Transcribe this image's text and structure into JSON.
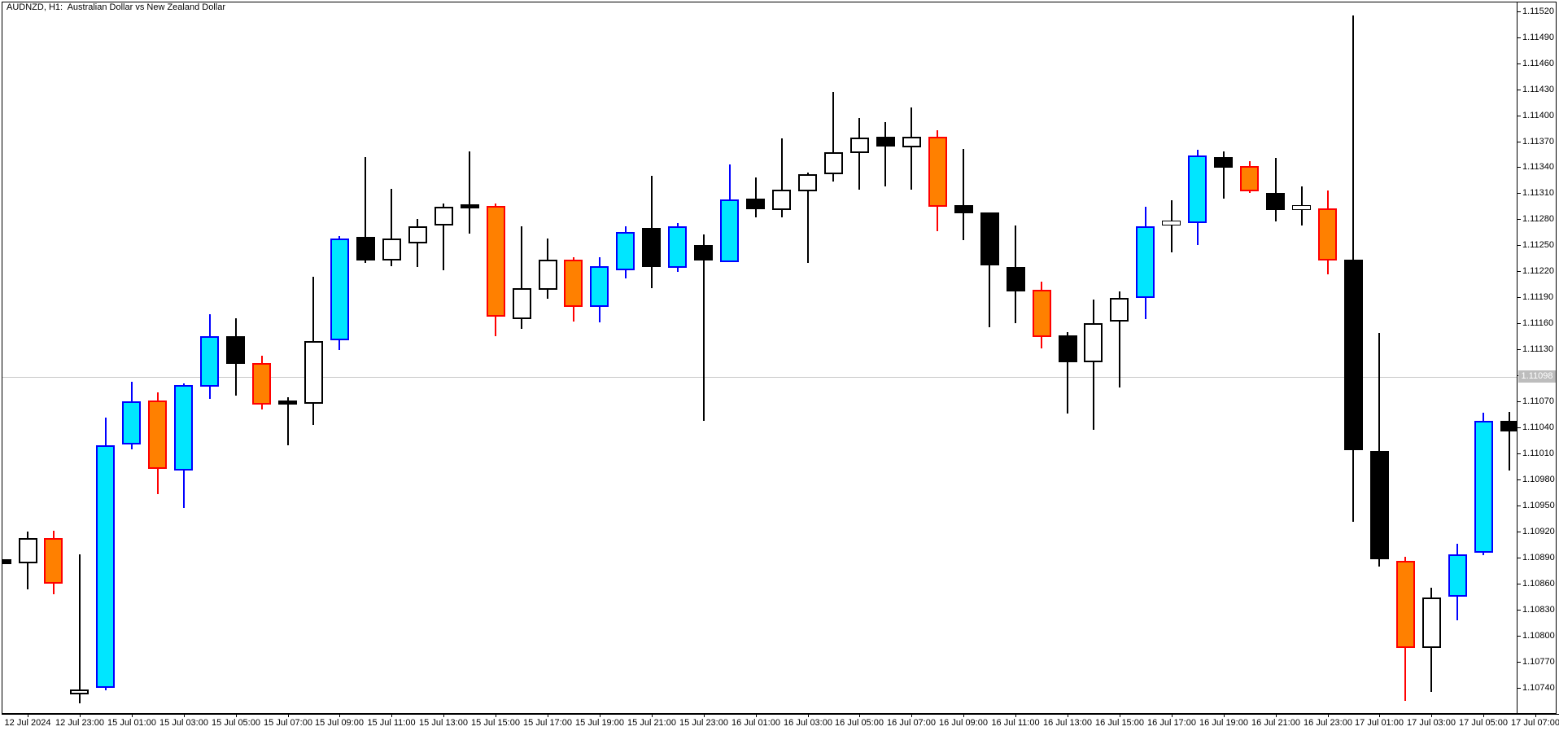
{
  "window": {
    "title": "AUDNZD, H1:  Australian Dollar vs New Zealand Dollar"
  },
  "colors": {
    "background": "#FFFFFF",
    "frame": "#000000",
    "bid_line": "#C8C8C8",
    "bid_label_bg": "#BDBDBD",
    "bid_label_text": "#FFFFFF",
    "candle_colors": {
      "cyan": {
        "fill": "#00E6FF",
        "border": "#0000FF",
        "wick": "#0000FF"
      },
      "orange": {
        "fill": "#FF8000",
        "border": "#FF0000",
        "wick": "#FF0000"
      },
      "black": {
        "fill": "#000000",
        "border": "#000000",
        "wick": "#000000"
      },
      "white": {
        "fill": "#FFFFFF",
        "border": "#000000",
        "wick": "#000000"
      }
    }
  },
  "chart_data": {
    "type": "candlestick",
    "symbol": "AUDNZD",
    "timeframe": "H1",
    "title": "AUDNZD, H1:  Australian Dollar vs New Zealand Dollar",
    "bid_price_label": "1.11098",
    "bid_price": 1.11098,
    "price_axis": {
      "min": 1.1074,
      "max": 1.1152,
      "step": 0.0003,
      "labels": [
        "1.11520",
        "1.11490",
        "1.11460",
        "1.11430",
        "1.11400",
        "1.11370",
        "1.11340",
        "1.11310",
        "1.11280",
        "1.11250",
        "1.11220",
        "1.11190",
        "1.11160",
        "1.11130",
        "1.11100",
        "1.11070",
        "1.11040",
        "1.11010",
        "1.10980",
        "1.10950",
        "1.10920",
        "1.10890",
        "1.10860",
        "1.10830",
        "1.10800",
        "1.10770",
        "1.10740"
      ]
    },
    "time_axis": {
      "labels": [
        {
          "idx": 0,
          "text": "12 Jul 2024"
        },
        {
          "idx": 2,
          "text": "12 Jul 23:00"
        },
        {
          "idx": 4,
          "text": "15 Jul 01:00"
        },
        {
          "idx": 6,
          "text": "15 Jul 03:00"
        },
        {
          "idx": 8,
          "text": "15 Jul 05:00"
        },
        {
          "idx": 10,
          "text": "15 Jul 07:00"
        },
        {
          "idx": 12,
          "text": "15 Jul 09:00"
        },
        {
          "idx": 14,
          "text": "15 Jul 11:00"
        },
        {
          "idx": 16,
          "text": "15 Jul 13:00"
        },
        {
          "idx": 18,
          "text": "15 Jul 15:00"
        },
        {
          "idx": 20,
          "text": "15 Jul 17:00"
        },
        {
          "idx": 22,
          "text": "15 Jul 19:00"
        },
        {
          "idx": 24,
          "text": "15 Jul 21:00"
        },
        {
          "idx": 26,
          "text": "15 Jul 23:00"
        },
        {
          "idx": 28,
          "text": "16 Jul 01:00"
        },
        {
          "idx": 30,
          "text": "16 Jul 03:00"
        },
        {
          "idx": 32,
          "text": "16 Jul 05:00"
        },
        {
          "idx": 34,
          "text": "16 Jul 07:00"
        },
        {
          "idx": 36,
          "text": "16 Jul 09:00"
        },
        {
          "idx": 38,
          "text": "16 Jul 11:00"
        },
        {
          "idx": 40,
          "text": "16 Jul 13:00"
        },
        {
          "idx": 42,
          "text": "16 Jul 15:00"
        },
        {
          "idx": 44,
          "text": "16 Jul 17:00"
        },
        {
          "idx": 46,
          "text": "16 Jul 19:00"
        },
        {
          "idx": 48,
          "text": "16 Jul 21:00"
        },
        {
          "idx": 50,
          "text": "16 Jul 23:00"
        },
        {
          "idx": 52,
          "text": "17 Jul 01:00"
        },
        {
          "idx": 54,
          "text": "17 Jul 03:00"
        },
        {
          "idx": 56,
          "text": "17 Jul 05:00"
        },
        {
          "idx": 58,
          "text": "17 Jul 07:00"
        }
      ]
    },
    "candles": [
      {
        "t": "12 Jul 20:00",
        "o": 1.10888,
        "h": 1.10888,
        "l": 1.10882,
        "c": 1.10882,
        "color": "black",
        "partial": true
      },
      {
        "t": "12 Jul 21:00",
        "o": 1.10883,
        "h": 1.1092,
        "l": 1.10853,
        "c": 1.10912,
        "color": "white"
      },
      {
        "t": "12 Jul 22:00",
        "o": 1.10912,
        "h": 1.10921,
        "l": 1.10848,
        "c": 1.10859,
        "color": "orange"
      },
      {
        "t": "12 Jul 23:00",
        "o": 1.10732,
        "h": 1.10894,
        "l": 1.10722,
        "c": 1.10738,
        "color": "white"
      },
      {
        "t": "15 Jul 00:00",
        "o": 1.10739,
        "h": 1.11051,
        "l": 1.10737,
        "c": 1.11019,
        "color": "cyan"
      },
      {
        "t": "15 Jul 01:00",
        "o": 1.1102,
        "h": 1.11093,
        "l": 1.11015,
        "c": 1.1107,
        "color": "cyan"
      },
      {
        "t": "15 Jul 02:00",
        "o": 1.11071,
        "h": 1.1108,
        "l": 1.10963,
        "c": 1.10992,
        "color": "orange"
      },
      {
        "t": "15 Jul 03:00",
        "o": 1.1099,
        "h": 1.11091,
        "l": 1.10947,
        "c": 1.11089,
        "color": "cyan"
      },
      {
        "t": "15 Jul 04:00",
        "o": 1.11087,
        "h": 1.11171,
        "l": 1.11073,
        "c": 1.11145,
        "color": "cyan"
      },
      {
        "t": "15 Jul 05:00",
        "o": 1.11145,
        "h": 1.11166,
        "l": 1.11077,
        "c": 1.11113,
        "color": "black"
      },
      {
        "t": "15 Jul 06:00",
        "o": 1.11114,
        "h": 1.11123,
        "l": 1.11061,
        "c": 1.11066,
        "color": "orange"
      },
      {
        "t": "15 Jul 07:00",
        "o": 1.11069,
        "h": 1.11075,
        "l": 1.1102,
        "c": 1.11068,
        "color": "black"
      },
      {
        "t": "15 Jul 08:00",
        "o": 1.11068,
        "h": 1.11214,
        "l": 1.11043,
        "c": 1.1114,
        "color": "white"
      },
      {
        "t": "15 Jul 09:00",
        "o": 1.11141,
        "h": 1.11261,
        "l": 1.1113,
        "c": 1.11258,
        "color": "cyan"
      },
      {
        "t": "15 Jul 10:00",
        "o": 1.1126,
        "h": 1.11352,
        "l": 1.1123,
        "c": 1.11233,
        "color": "black"
      },
      {
        "t": "15 Jul 11:00",
        "o": 1.11233,
        "h": 1.11315,
        "l": 1.11226,
        "c": 1.11258,
        "color": "white"
      },
      {
        "t": "15 Jul 12:00",
        "o": 1.11252,
        "h": 1.1128,
        "l": 1.11225,
        "c": 1.11272,
        "color": "white"
      },
      {
        "t": "15 Jul 13:00",
        "o": 1.11272,
        "h": 1.11298,
        "l": 1.11221,
        "c": 1.11294,
        "color": "white"
      },
      {
        "t": "15 Jul 14:00",
        "o": 1.11295,
        "h": 1.11358,
        "l": 1.11263,
        "c": 1.11295,
        "color": "black"
      },
      {
        "t": "15 Jul 15:00",
        "o": 1.11295,
        "h": 1.11298,
        "l": 1.11145,
        "c": 1.11167,
        "color": "orange"
      },
      {
        "t": "15 Jul 16:00",
        "o": 1.11165,
        "h": 1.11272,
        "l": 1.11154,
        "c": 1.11201,
        "color": "white"
      },
      {
        "t": "15 Jul 17:00",
        "o": 1.11198,
        "h": 1.11258,
        "l": 1.11189,
        "c": 1.11233,
        "color": "white"
      },
      {
        "t": "15 Jul 18:00",
        "o": 1.11233,
        "h": 1.11236,
        "l": 1.11162,
        "c": 1.11179,
        "color": "orange"
      },
      {
        "t": "15 Jul 19:00",
        "o": 1.11179,
        "h": 1.11236,
        "l": 1.11161,
        "c": 1.11226,
        "color": "cyan"
      },
      {
        "t": "15 Jul 20:00",
        "o": 1.11221,
        "h": 1.11272,
        "l": 1.11212,
        "c": 1.11265,
        "color": "cyan"
      },
      {
        "t": "15 Jul 21:00",
        "o": 1.1127,
        "h": 1.1133,
        "l": 1.112,
        "c": 1.11225,
        "color": "black"
      },
      {
        "t": "15 Jul 22:00",
        "o": 1.11224,
        "h": 1.11276,
        "l": 1.1122,
        "c": 1.11272,
        "color": "cyan"
      },
      {
        "t": "15 Jul 23:00",
        "o": 1.1125,
        "h": 1.11263,
        "l": 1.11048,
        "c": 1.11232,
        "color": "black"
      },
      {
        "t": "16 Jul 00:00",
        "o": 1.11231,
        "h": 1.11343,
        "l": 1.1123,
        "c": 1.11303,
        "color": "cyan"
      },
      {
        "t": "16 Jul 01:00",
        "o": 1.11304,
        "h": 1.11328,
        "l": 1.11282,
        "c": 1.11292,
        "color": "black"
      },
      {
        "t": "16 Jul 02:00",
        "o": 1.11291,
        "h": 1.11373,
        "l": 1.11282,
        "c": 1.11314,
        "color": "white"
      },
      {
        "t": "16 Jul 03:00",
        "o": 1.11312,
        "h": 1.11334,
        "l": 1.1123,
        "c": 1.11332,
        "color": "white"
      },
      {
        "t": "16 Jul 04:00",
        "o": 1.11332,
        "h": 1.11427,
        "l": 1.11324,
        "c": 1.11357,
        "color": "white"
      },
      {
        "t": "16 Jul 05:00",
        "o": 1.11356,
        "h": 1.11397,
        "l": 1.11314,
        "c": 1.11374,
        "color": "white"
      },
      {
        "t": "16 Jul 06:00",
        "o": 1.11375,
        "h": 1.11392,
        "l": 1.11318,
        "c": 1.11364,
        "color": "black"
      },
      {
        "t": "16 Jul 07:00",
        "o": 1.11363,
        "h": 1.11409,
        "l": 1.11314,
        "c": 1.11375,
        "color": "white"
      },
      {
        "t": "16 Jul 08:00",
        "o": 1.11375,
        "h": 1.11383,
        "l": 1.11267,
        "c": 1.11294,
        "color": "orange"
      },
      {
        "t": "16 Jul 09:00",
        "o": 1.11296,
        "h": 1.11361,
        "l": 1.11256,
        "c": 1.11287,
        "color": "black"
      },
      {
        "t": "16 Jul 10:00",
        "o": 1.11288,
        "h": 1.11288,
        "l": 1.11156,
        "c": 1.11227,
        "color": "black"
      },
      {
        "t": "16 Jul 11:00",
        "o": 1.11225,
        "h": 1.11273,
        "l": 1.1116,
        "c": 1.11197,
        "color": "black"
      },
      {
        "t": "16 Jul 12:00",
        "o": 1.11199,
        "h": 1.11208,
        "l": 1.11131,
        "c": 1.11145,
        "color": "orange"
      },
      {
        "t": "16 Jul 13:00",
        "o": 1.11146,
        "h": 1.1115,
        "l": 1.11056,
        "c": 1.11115,
        "color": "black"
      },
      {
        "t": "16 Jul 14:00",
        "o": 1.11115,
        "h": 1.11187,
        "l": 1.11037,
        "c": 1.1116,
        "color": "white"
      },
      {
        "t": "16 Jul 15:00",
        "o": 1.11162,
        "h": 1.11197,
        "l": 1.11086,
        "c": 1.11189,
        "color": "white"
      },
      {
        "t": "16 Jul 16:00",
        "o": 1.11189,
        "h": 1.11294,
        "l": 1.11164,
        "c": 1.11272,
        "color": "cyan"
      },
      {
        "t": "16 Jul 17:00",
        "o": 1.11277,
        "h": 1.11302,
        "l": 1.11242,
        "c": 1.11273,
        "color": "white"
      },
      {
        "t": "16 Jul 18:00",
        "o": 1.11276,
        "h": 1.1136,
        "l": 1.1125,
        "c": 1.11354,
        "color": "cyan"
      },
      {
        "t": "16 Jul 19:00",
        "o": 1.11352,
        "h": 1.11358,
        "l": 1.11304,
        "c": 1.1134,
        "color": "black"
      },
      {
        "t": "16 Jul 20:00",
        "o": 1.11341,
        "h": 1.11347,
        "l": 1.1131,
        "c": 1.11312,
        "color": "orange"
      },
      {
        "t": "16 Jul 21:00",
        "o": 1.1131,
        "h": 1.11351,
        "l": 1.11278,
        "c": 1.1129,
        "color": "black"
      },
      {
        "t": "16 Jul 22:00",
        "o": 1.11291,
        "h": 1.11318,
        "l": 1.11273,
        "c": 1.11294,
        "color": "white"
      },
      {
        "t": "16 Jul 23:00",
        "o": 1.11293,
        "h": 1.11313,
        "l": 1.11216,
        "c": 1.11233,
        "color": "orange"
      },
      {
        "t": "17 Jul 00:00",
        "o": 1.11233,
        "h": 1.11515,
        "l": 1.10931,
        "c": 1.11013,
        "color": "black"
      },
      {
        "t": "17 Jul 01:00",
        "o": 1.11013,
        "h": 1.11149,
        "l": 1.1088,
        "c": 1.10888,
        "color": "black"
      },
      {
        "t": "17 Jul 02:00",
        "o": 1.10886,
        "h": 1.10891,
        "l": 1.10725,
        "c": 1.10786,
        "color": "orange"
      },
      {
        "t": "17 Jul 03:00",
        "o": 1.10786,
        "h": 1.10855,
        "l": 1.10735,
        "c": 1.10844,
        "color": "white"
      },
      {
        "t": "17 Jul 04:00",
        "o": 1.10845,
        "h": 1.10906,
        "l": 1.10818,
        "c": 1.10894,
        "color": "cyan"
      },
      {
        "t": "17 Jul 05:00",
        "o": 1.10896,
        "h": 1.11057,
        "l": 1.10893,
        "c": 1.11048,
        "color": "cyan"
      },
      {
        "t": "17 Jul 06:00",
        "o": 1.11048,
        "h": 1.11058,
        "l": 1.1099,
        "c": 1.11036,
        "color": "black"
      }
    ]
  }
}
